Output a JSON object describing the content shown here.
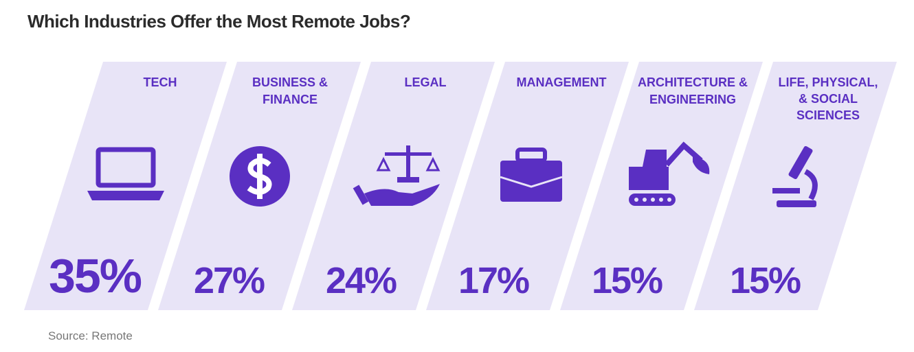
{
  "header": {
    "title": "Which Industries Offer the Most Remote Jobs?"
  },
  "items": [
    {
      "label": "TECH",
      "value": "35%"
    },
    {
      "label": "BUSINESS & FINANCE",
      "value": "27%"
    },
    {
      "label": "LEGAL",
      "value": "24%"
    },
    {
      "label": "MANAGEMENT",
      "value": "17%"
    },
    {
      "label": "ARCHITECTURE & ENGINEERING",
      "value": "15%"
    },
    {
      "label": "LIFE, PHYSICAL, & SOCIAL SCIENCES",
      "value": "15%"
    }
  ],
  "footer": {
    "source": "Source: Remote"
  }
}
